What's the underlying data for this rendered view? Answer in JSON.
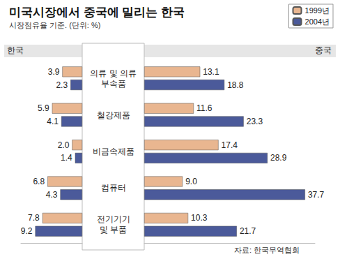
{
  "chart_data": {
    "type": "bar",
    "orientation": "horizontal",
    "title": "미국시장에서 중국에 밀리는 한국",
    "subtitle": "시장점유율 기준. (단위: %)",
    "note": "자료: 한국무역협회",
    "categories": [
      "의류 및 의류\n부속품",
      "철강제품",
      "비금속제품",
      "컴퓨터",
      "전기기기\n및 부품"
    ],
    "panels": [
      {
        "label": "한국",
        "xlim": [
          0,
          12
        ],
        "series": [
          {
            "name": "1999년",
            "color": "#E9B690",
            "values": [
              3.9,
              5.9,
              2.0,
              6.8,
              7.8
            ],
            "value_labels": [
              "3.9",
              "5.9",
              "2.0",
              "6.8",
              "7.8"
            ]
          },
          {
            "name": "2004년",
            "color": "#4B5A9A",
            "values": [
              2.3,
              4.1,
              1.4,
              4.3,
              9.2
            ]
          }
        ]
      },
      {
        "label": "중국",
        "xlim": [
          0,
          40
        ],
        "series": [
          {
            "name": "1999년",
            "color": "#E9B690",
            "values": [
              13.1,
              11.6,
              17.4,
              9.0,
              10.3
            ],
            "value_labels": [
              "13.1",
              "11.6",
              "17.4",
              "9.0",
              "10.3"
            ]
          },
          {
            "name": "2004년",
            "color": "#4B5A9A",
            "values": [
              18.8,
              23.3,
              28.9,
              37.7,
              21.7
            ]
          }
        ]
      }
    ],
    "data_labels": true,
    "legend": "upper right",
    "tick_labels": "y",
    "grid": false
  }
}
